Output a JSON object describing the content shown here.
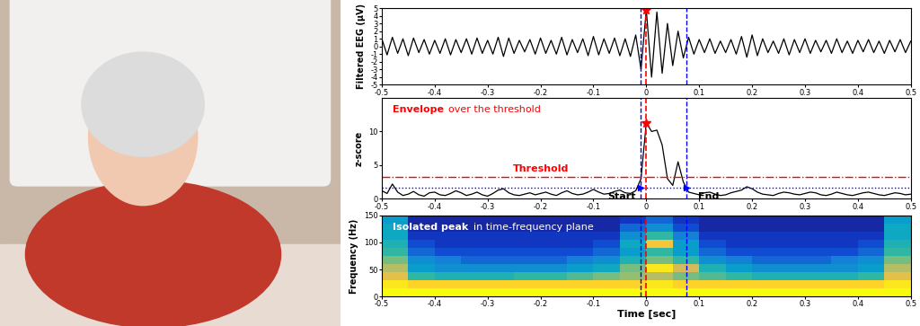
{
  "chart_data": [
    {
      "type": "line",
      "ylabel": "Filtered EEG (μV)",
      "color": "#000000",
      "x": [
        -0.5,
        -0.49,
        -0.48,
        -0.47,
        -0.46,
        -0.45,
        -0.44,
        -0.43,
        -0.42,
        -0.41,
        -0.4,
        -0.39,
        -0.38,
        -0.37,
        -0.36,
        -0.35,
        -0.34,
        -0.33,
        -0.32,
        -0.31,
        -0.3,
        -0.29,
        -0.28,
        -0.27,
        -0.26,
        -0.25,
        -0.24,
        -0.23,
        -0.22,
        -0.21,
        -0.2,
        -0.19,
        -0.18,
        -0.17,
        -0.16,
        -0.15,
        -0.14,
        -0.13,
        -0.12,
        -0.11,
        -0.1,
        -0.09,
        -0.08,
        -0.07,
        -0.06,
        -0.05,
        -0.04,
        -0.03,
        -0.02,
        -0.01,
        0,
        0.01,
        0.02,
        0.03,
        0.04,
        0.05,
        0.06,
        0.07,
        0.08,
        0.09,
        0.1,
        0.11,
        0.12,
        0.13,
        0.14,
        0.15,
        0.16,
        0.17,
        0.18,
        0.19,
        0.2,
        0.21,
        0.22,
        0.23,
        0.24,
        0.25,
        0.26,
        0.27,
        0.28,
        0.29,
        0.3,
        0.31,
        0.32,
        0.33,
        0.34,
        0.35,
        0.36,
        0.37,
        0.38,
        0.39,
        0.4,
        0.41,
        0.42,
        0.43,
        0.44,
        0.45,
        0.46,
        0.47,
        0.48,
        0.49,
        0.5
      ],
      "values": [
        1.0,
        -1.1,
        1.2,
        -0.9,
        1.0,
        -1.2,
        1.1,
        -0.8,
        0.9,
        -1.0,
        0.8,
        -0.9,
        1.0,
        -1.1,
        0.9,
        -0.8,
        1.0,
        -1.0,
        1.1,
        -0.9,
        0.8,
        -1.0,
        1.2,
        -1.3,
        1.1,
        -0.9,
        0.8,
        -0.7,
        0.9,
        -1.0,
        1.1,
        -0.9,
        0.8,
        -1.0,
        1.2,
        -1.1,
        0.9,
        -0.8,
        1.0,
        -1.2,
        1.3,
        -1.1,
        1.0,
        -0.9,
        1.1,
        -1.2,
        1.0,
        -1.3,
        1.5,
        -3.0,
        4.8,
        -4.0,
        4.5,
        -3.5,
        3.0,
        -2.5,
        2.0,
        -1.5,
        1.2,
        -1.0,
        0.9,
        -0.8,
        1.0,
        -0.9,
        0.7,
        -0.8,
        0.9,
        -1.0,
        1.3,
        -1.4,
        1.5,
        -1.2,
        1.0,
        -0.8,
        0.7,
        -0.9,
        1.0,
        -1.1,
        0.9,
        -0.8,
        1.0,
        -0.9,
        0.8,
        -0.7,
        0.8,
        -0.9,
        1.0,
        -0.8,
        0.7,
        -0.9,
        0.8,
        -0.7,
        0.9,
        -0.8,
        0.7,
        -0.9,
        0.8,
        -0.7,
        0.9,
        -0.8,
        0.7
      ],
      "xlim": [
        -0.5,
        0.5
      ],
      "xticks": [
        -0.5,
        -0.4,
        -0.3,
        -0.2,
        -0.1,
        0,
        0.1,
        0.2,
        0.3,
        0.4,
        0.5
      ],
      "ylim": [
        -5,
        5
      ],
      "yticks": [
        -5,
        -4,
        -3,
        -2,
        -1,
        0,
        1,
        2,
        3,
        4,
        5
      ],
      "peak": {
        "x": 0,
        "y": 4.8,
        "marker": "star",
        "color": "#ff0000"
      },
      "start": -0.01,
      "end": 0.075
    },
    {
      "type": "line",
      "ylabel": "z-score",
      "color": "#000000",
      "x": [
        -0.5,
        -0.49,
        -0.48,
        -0.47,
        -0.46,
        -0.45,
        -0.44,
        -0.43,
        -0.42,
        -0.41,
        -0.4,
        -0.39,
        -0.38,
        -0.37,
        -0.36,
        -0.35,
        -0.34,
        -0.33,
        -0.32,
        -0.31,
        -0.3,
        -0.29,
        -0.28,
        -0.27,
        -0.26,
        -0.25,
        -0.24,
        -0.23,
        -0.22,
        -0.21,
        -0.2,
        -0.19,
        -0.18,
        -0.17,
        -0.16,
        -0.15,
        -0.14,
        -0.13,
        -0.12,
        -0.11,
        -0.1,
        -0.09,
        -0.08,
        -0.07,
        -0.06,
        -0.05,
        -0.04,
        -0.03,
        -0.02,
        -0.01,
        0,
        0.01,
        0.02,
        0.03,
        0.04,
        0.05,
        0.06,
        0.07,
        0.08,
        0.09,
        0.1,
        0.11,
        0.12,
        0.13,
        0.14,
        0.15,
        0.16,
        0.17,
        0.18,
        0.19,
        0.2,
        0.21,
        0.22,
        0.23,
        0.24,
        0.25,
        0.26,
        0.27,
        0.28,
        0.29,
        0.3,
        0.31,
        0.32,
        0.33,
        0.34,
        0.35,
        0.36,
        0.37,
        0.38,
        0.39,
        0.4,
        0.41,
        0.42,
        0.43,
        0.44,
        0.45,
        0.46,
        0.47,
        0.48,
        0.49,
        0.5
      ],
      "values": [
        1.2,
        0.8,
        2.2,
        1.0,
        0.5,
        0.7,
        1.1,
        0.6,
        0.4,
        0.9,
        1.0,
        0.6,
        0.5,
        0.8,
        1.2,
        0.9,
        0.5,
        0.7,
        1.0,
        0.6,
        0.4,
        0.8,
        1.3,
        1.5,
        0.9,
        0.6,
        0.5,
        0.7,
        0.9,
        0.6,
        0.8,
        1.0,
        0.7,
        0.5,
        0.9,
        1.2,
        0.8,
        0.6,
        0.7,
        1.0,
        1.4,
        1.0,
        0.7,
        0.8,
        1.1,
        1.3,
        0.9,
        0.8,
        1.2,
        3.0,
        11.3,
        10.0,
        10.2,
        8.0,
        3.0,
        2.0,
        5.5,
        2.5,
        1.0,
        0.8,
        0.6,
        0.9,
        1.0,
        0.7,
        0.5,
        0.6,
        0.9,
        1.1,
        1.3,
        1.8,
        1.5,
        1.0,
        0.7,
        0.6,
        0.5,
        0.8,
        1.0,
        0.9,
        0.7,
        0.6,
        0.8,
        1.0,
        0.9,
        0.6,
        0.5,
        0.7,
        1.0,
        0.8,
        0.6,
        0.5,
        0.7,
        0.9,
        1.0,
        0.8,
        0.6,
        0.5,
        0.7,
        0.9,
        0.8,
        0.6,
        0.7
      ],
      "xlim": [
        -0.5,
        0.5
      ],
      "xticks": [
        -0.5,
        -0.4,
        -0.3,
        -0.2,
        -0.1,
        0,
        0.1,
        0.2,
        0.3,
        0.4,
        0.5
      ],
      "ylim": [
        0,
        15
      ],
      "yticks": [
        0,
        5,
        10
      ],
      "threshold": 3.2,
      "threshold_color": "#ff0000",
      "threshold_line_style": "dashdot",
      "lower_threshold": 1.6,
      "lower_threshold_color": "#0000ff",
      "lower_threshold_line_style": "dotted",
      "peak": {
        "x": 0,
        "y": 11.3,
        "marker": "star",
        "color": "#ff0000"
      },
      "start": -0.01,
      "end": 0.075,
      "annotations": {
        "envelope": "Envelope",
        "envelope_rest": "over the threshold",
        "threshold": "Threshold",
        "start": "Start",
        "end": "End"
      }
    },
    {
      "type": "heatmap",
      "ylabel": "Frequency (Hz)",
      "xlabel": "Time [sec]",
      "x_edges": [
        -0.5,
        -0.45,
        -0.4,
        -0.35,
        -0.3,
        -0.25,
        -0.2,
        -0.15,
        -0.1,
        -0.05,
        0,
        0.05,
        0.1,
        0.15,
        0.2,
        0.25,
        0.3,
        0.35,
        0.4,
        0.45,
        0.5
      ],
      "y_edges": [
        0,
        15,
        30,
        45,
        60,
        75,
        90,
        105,
        120,
        135,
        150
      ],
      "cells": [
        [
          1.0,
          1.0,
          1.0,
          1.0,
          1.0,
          1.0,
          1.0,
          1.0,
          1.0,
          1.0,
          1.0,
          1.0,
          1.0,
          1.0,
          1.0,
          1.0,
          1.0,
          1.0,
          1.0,
          1.0
        ],
        [
          0.95,
          0.9,
          0.9,
          0.9,
          0.9,
          0.9,
          0.9,
          0.9,
          0.9,
          0.9,
          0.95,
          0.9,
          0.9,
          0.9,
          0.9,
          0.9,
          0.9,
          0.9,
          0.9,
          0.95
        ],
        [
          0.8,
          0.5,
          0.45,
          0.45,
          0.45,
          0.5,
          0.5,
          0.55,
          0.6,
          0.65,
          0.7,
          0.6,
          0.55,
          0.5,
          0.45,
          0.45,
          0.45,
          0.45,
          0.5,
          0.8
        ],
        [
          0.7,
          0.35,
          0.3,
          0.3,
          0.3,
          0.3,
          0.3,
          0.35,
          0.4,
          0.6,
          0.95,
          0.75,
          0.45,
          0.35,
          0.3,
          0.3,
          0.3,
          0.3,
          0.35,
          0.7
        ],
        [
          0.6,
          0.3,
          0.25,
          0.2,
          0.2,
          0.2,
          0.2,
          0.25,
          0.3,
          0.45,
          0.6,
          0.5,
          0.3,
          0.25,
          0.2,
          0.2,
          0.2,
          0.25,
          0.3,
          0.6
        ],
        [
          0.5,
          0.2,
          0.15,
          0.15,
          0.15,
          0.15,
          0.15,
          0.15,
          0.2,
          0.35,
          0.5,
          0.35,
          0.2,
          0.15,
          0.15,
          0.15,
          0.15,
          0.15,
          0.2,
          0.5
        ],
        [
          0.45,
          0.15,
          0.1,
          0.1,
          0.1,
          0.1,
          0.1,
          0.1,
          0.15,
          0.4,
          0.85,
          0.35,
          0.15,
          0.1,
          0.1,
          0.1,
          0.1,
          0.1,
          0.15,
          0.45
        ],
        [
          0.4,
          0.1,
          0.1,
          0.1,
          0.1,
          0.1,
          0.1,
          0.1,
          0.1,
          0.3,
          0.5,
          0.25,
          0.1,
          0.1,
          0.1,
          0.1,
          0.1,
          0.1,
          0.1,
          0.4
        ],
        [
          0.4,
          0.05,
          0.05,
          0.05,
          0.05,
          0.05,
          0.05,
          0.05,
          0.05,
          0.2,
          0.3,
          0.15,
          0.05,
          0.05,
          0.05,
          0.05,
          0.05,
          0.05,
          0.05,
          0.4
        ],
        [
          0.35,
          0.05,
          0.05,
          0.05,
          0.05,
          0.05,
          0.05,
          0.05,
          0.05,
          0.1,
          0.2,
          0.1,
          0.05,
          0.05,
          0.05,
          0.05,
          0.05,
          0.05,
          0.05,
          0.35
        ]
      ],
      "color_range": [
        0,
        1
      ],
      "xlim": [
        -0.5,
        0.5
      ],
      "xticks": [
        -0.5,
        -0.4,
        -0.3,
        -0.2,
        -0.1,
        0,
        0.1,
        0.2,
        0.3,
        0.4,
        0.5
      ],
      "ylim": [
        0,
        150
      ],
      "yticks": [
        0,
        50,
        100,
        150
      ],
      "peak": {
        "x": 0,
        "color": "#ff0000"
      },
      "start": -0.01,
      "end": 0.075,
      "annotations": {
        "title_bold": "Isolated peak",
        "title_rest": "in time-frequency plane"
      }
    }
  ]
}
